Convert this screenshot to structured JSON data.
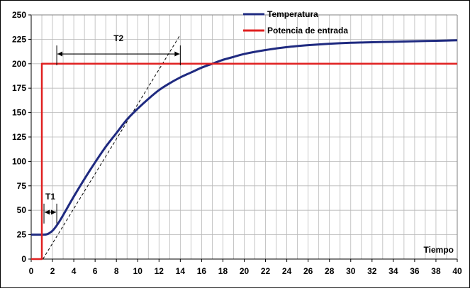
{
  "chart_data": {
    "type": "line",
    "xlabel": "Tiempo",
    "xlim": [
      0,
      40
    ],
    "ylim": [
      0,
      250
    ],
    "x_ticks": [
      0,
      2,
      4,
      6,
      8,
      10,
      12,
      14,
      16,
      18,
      20,
      22,
      24,
      26,
      28,
      30,
      32,
      34,
      36,
      38,
      40
    ],
    "y_ticks": [
      0,
      25,
      50,
      75,
      100,
      125,
      150,
      175,
      200,
      225,
      250
    ],
    "x_minor_step": 1,
    "grid": true,
    "legend_position": "top-center",
    "series": [
      {
        "name": "Temperatura",
        "color": "#1f2a80",
        "x": [
          0,
          1,
          1.5,
          2,
          2.5,
          3,
          4,
          5,
          6,
          7,
          8,
          9,
          10,
          11,
          12,
          13,
          14,
          15,
          16,
          17,
          18,
          19,
          20,
          22,
          24,
          26,
          28,
          30,
          32,
          34,
          36,
          38,
          40
        ],
        "y": [
          25,
          25,
          25.5,
          29,
          36,
          45,
          64,
          82,
          99,
          115,
          129,
          143,
          154,
          164,
          173,
          180,
          186,
          191,
          196,
          200,
          204,
          207,
          210,
          214,
          217,
          219,
          220.5,
          221.5,
          222,
          222.5,
          223,
          223.5,
          224
        ]
      },
      {
        "name": "Potencia de entrada",
        "color": "#e02020",
        "x": [
          0,
          1,
          1,
          40
        ],
        "y": [
          0,
          0,
          200,
          200
        ]
      }
    ],
    "tangent_line": {
      "x": [
        1.1,
        13.9
      ],
      "y": [
        0,
        228
      ]
    },
    "annotations": [
      {
        "label": "T1",
        "from_x": 1.2,
        "to_x": 2.4,
        "at_y": 48
      },
      {
        "label": "T2",
        "from_x": 2.4,
        "to_x": 14,
        "at_y": 210
      }
    ]
  }
}
